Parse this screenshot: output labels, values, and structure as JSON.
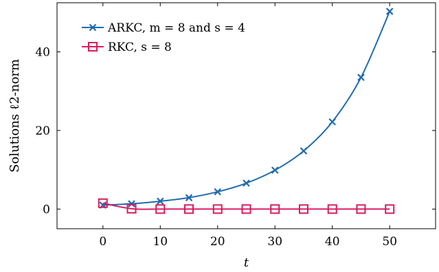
{
  "chart_data": {
    "type": "line",
    "xlabel": "t",
    "ylabel": "Solutions ℓ2-norm",
    "xlim": [
      -8,
      58
    ],
    "ylim": [
      -5,
      52.5
    ],
    "xticks": [
      0,
      10,
      20,
      30,
      40,
      50
    ],
    "yticks": [
      0,
      20,
      40
    ],
    "legend_position": "top-left",
    "grid": false,
    "series": [
      {
        "name": "ARKC, m = 8 and s = 4",
        "color": "#1f6bb0",
        "marker": "x",
        "x": [
          0,
          5,
          10,
          15,
          20,
          25,
          30,
          35,
          40,
          45,
          50
        ],
        "y": [
          1.0,
          1.35,
          2.0,
          2.9,
          4.4,
          6.6,
          9.9,
          14.8,
          22.2,
          33.5,
          50.3
        ]
      },
      {
        "name": "RKC, s = 8",
        "color": "#d81b60",
        "marker": "square",
        "x": [
          0,
          5,
          10,
          15,
          20,
          25,
          30,
          35,
          40,
          45,
          50
        ],
        "y": [
          1.5,
          0.1,
          0.0,
          0.0,
          0.0,
          0.0,
          0.0,
          0.0,
          0.0,
          0.0,
          0.0
        ]
      }
    ]
  }
}
